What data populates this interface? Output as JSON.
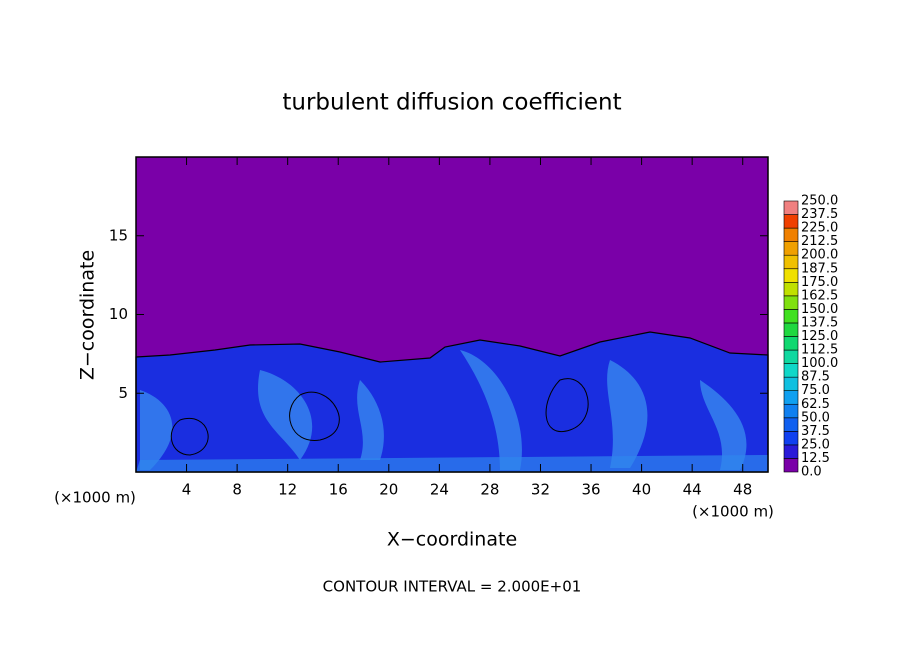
{
  "chart_data": {
    "type": "contour",
    "title": "turbulent diffusion coefficient",
    "xlabel": "X−coordinate",
    "ylabel": "Z−coordinate",
    "xunit": "(×1000 m)",
    "xunit_right": "(×1000 m)",
    "footnote": "CONTOUR INTERVAL = 2.000E+01",
    "xlim": [
      0,
      50
    ],
    "xticks": [
      4,
      8,
      12,
      16,
      20,
      24,
      28,
      32,
      36,
      40,
      44,
      48
    ],
    "ylim": [
      0,
      20
    ],
    "yticks": [
      5,
      10,
      15
    ],
    "colorbar": {
      "levels": [
        {
          "value": 0,
          "label": "0.0"
        },
        {
          "value": 12.5,
          "label": "12.5"
        },
        {
          "value": 25,
          "label": "25.0"
        },
        {
          "value": 37.5,
          "label": "37.5"
        },
        {
          "value": 50,
          "label": "50.0"
        },
        {
          "value": 62.5,
          "label": "62.5"
        },
        {
          "value": 75,
          "label": "75.0"
        },
        {
          "value": 87.5,
          "label": "87.5"
        },
        {
          "value": 100,
          "label": "100.0"
        },
        {
          "value": 112.5,
          "label": "112.5"
        },
        {
          "value": 125,
          "label": "125.0"
        },
        {
          "value": 137.5,
          "label": "137.5"
        },
        {
          "value": 150,
          "label": "150.0"
        },
        {
          "value": 162.5,
          "label": "162.5"
        },
        {
          "value": 175,
          "label": "175.0"
        },
        {
          "value": 187.5,
          "label": "187.5"
        },
        {
          "value": 200,
          "label": "200.0"
        },
        {
          "value": 212.5,
          "label": "212.5"
        },
        {
          "value": 225,
          "label": "225.0"
        },
        {
          "value": 237.5,
          "label": "237.5"
        },
        {
          "value": 250,
          "label": "250.0"
        }
      ],
      "colors": [
        "#7a00a8",
        "#2a1ad8",
        "#1040f0",
        "#1060f0",
        "#1080f0",
        "#10a0f0",
        "#10c0e0",
        "#10d8c8",
        "#10d8a0",
        "#10d870",
        "#20d840",
        "#40e020",
        "#80e010",
        "#c0e000",
        "#f0e000",
        "#f0c000",
        "#f0a000",
        "#f08000",
        "#f04000",
        "#f08080"
      ]
    }
  }
}
